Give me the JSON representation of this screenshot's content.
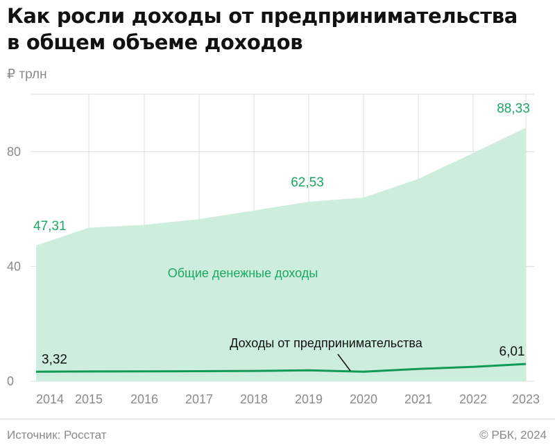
{
  "title_line1": "Как росли доходы от предпринимательства",
  "title_line2": "в общем объеме доходов",
  "unit": "₽ трлн",
  "source": "Источник: Росстат",
  "copyright": "© РБК, 2024",
  "colors": {
    "area_fill": "#cdeedd",
    "area_label": "#1aa862",
    "line": "#119a55",
    "grid": "#dcdcdc",
    "axis_text": "#8a8a8a"
  },
  "chart_data": {
    "type": "area",
    "x": [
      "2014",
      "2015",
      "2016",
      "2017",
      "2018",
      "2019",
      "2020",
      "2021",
      "2022",
      "2023"
    ],
    "ylim": [
      0,
      100
    ],
    "yticks": [
      0,
      40,
      80
    ],
    "ytick_labels": [
      "0",
      "40",
      "80"
    ],
    "grid": true,
    "series": [
      {
        "name": "Общие денежные доходы",
        "kind": "area",
        "values": [
          47.31,
          53.5,
          54.5,
          56.5,
          59.5,
          62.53,
          64.0,
          70.5,
          79.5,
          88.33
        ]
      },
      {
        "name": "Доходы от предпринимательства",
        "kind": "line",
        "values": [
          3.32,
          3.4,
          3.45,
          3.5,
          3.6,
          3.8,
          3.3,
          4.3,
          5.0,
          6.01
        ]
      }
    ],
    "annotations": {
      "area_values": [
        {
          "label": "47,31",
          "index": 0
        },
        {
          "label": "62,53",
          "index": 5
        },
        {
          "label": "88,33",
          "index": 9
        }
      ],
      "line_values": [
        {
          "label": "3,32",
          "index": 0
        },
        {
          "label": "6,01",
          "index": 9
        }
      ]
    }
  }
}
